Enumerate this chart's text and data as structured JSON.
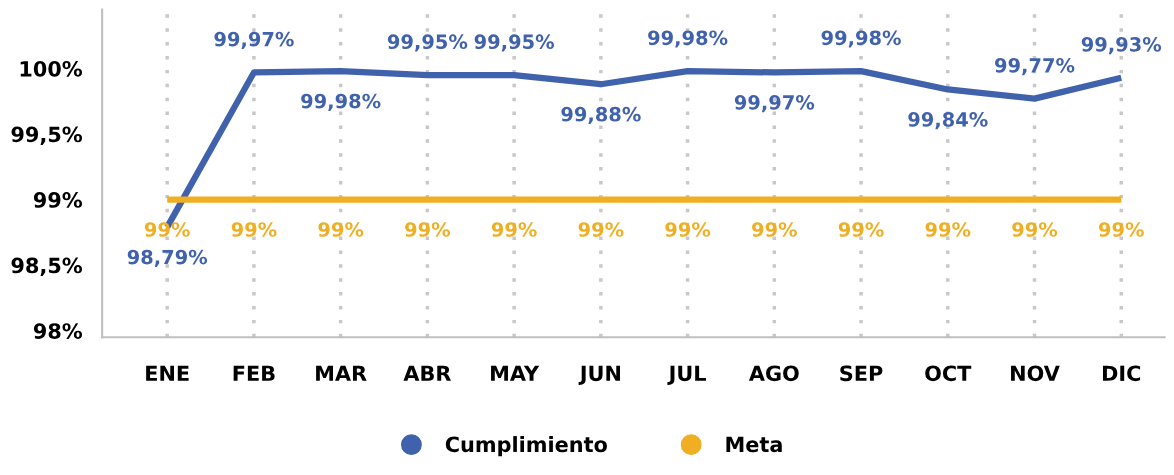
{
  "chart_data": {
    "type": "line",
    "categories": [
      "ENE",
      "FEB",
      "MAR",
      "ABR",
      "MAY",
      "JUN",
      "JUL",
      "AGO",
      "SEP",
      "OCT",
      "NOV",
      "DIC"
    ],
    "series": [
      {
        "name": "Cumplimiento",
        "color": "#4062ad",
        "values": [
          98.79,
          99.97,
          99.98,
          99.95,
          99.95,
          99.88,
          99.98,
          99.97,
          99.98,
          99.84,
          99.77,
          99.93
        ],
        "value_labels": [
          "98,79%",
          "99,97%",
          "99,98%",
          "99,95%",
          "99,95%",
          "99,88%",
          "99,98%",
          "99,97%",
          "99,98%",
          "99,84%",
          "99,77%",
          "99,93%"
        ]
      },
      {
        "name": "Meta",
        "color": "#f0ae22",
        "values": [
          99,
          99,
          99,
          99,
          99,
          99,
          99,
          99,
          99,
          99,
          99,
          99
        ],
        "value_labels": [
          "99%",
          "99%",
          "99%",
          "99%",
          "99%",
          "99%",
          "99%",
          "99%",
          "99%",
          "99%",
          "99%",
          "99%"
        ]
      }
    ],
    "ylim": [
      97.95,
      100.45
    ],
    "yticks": [
      {
        "value": 98,
        "label": "98%"
      },
      {
        "value": 98.5,
        "label": "98,5%"
      },
      {
        "value": 99,
        "label": "99%"
      },
      {
        "value": 99.5,
        "label": "99,5%"
      },
      {
        "value": 100,
        "label": "100%"
      }
    ],
    "grid": "x",
    "legend": "bottom",
    "marker": "none",
    "line_style": "solid"
  }
}
